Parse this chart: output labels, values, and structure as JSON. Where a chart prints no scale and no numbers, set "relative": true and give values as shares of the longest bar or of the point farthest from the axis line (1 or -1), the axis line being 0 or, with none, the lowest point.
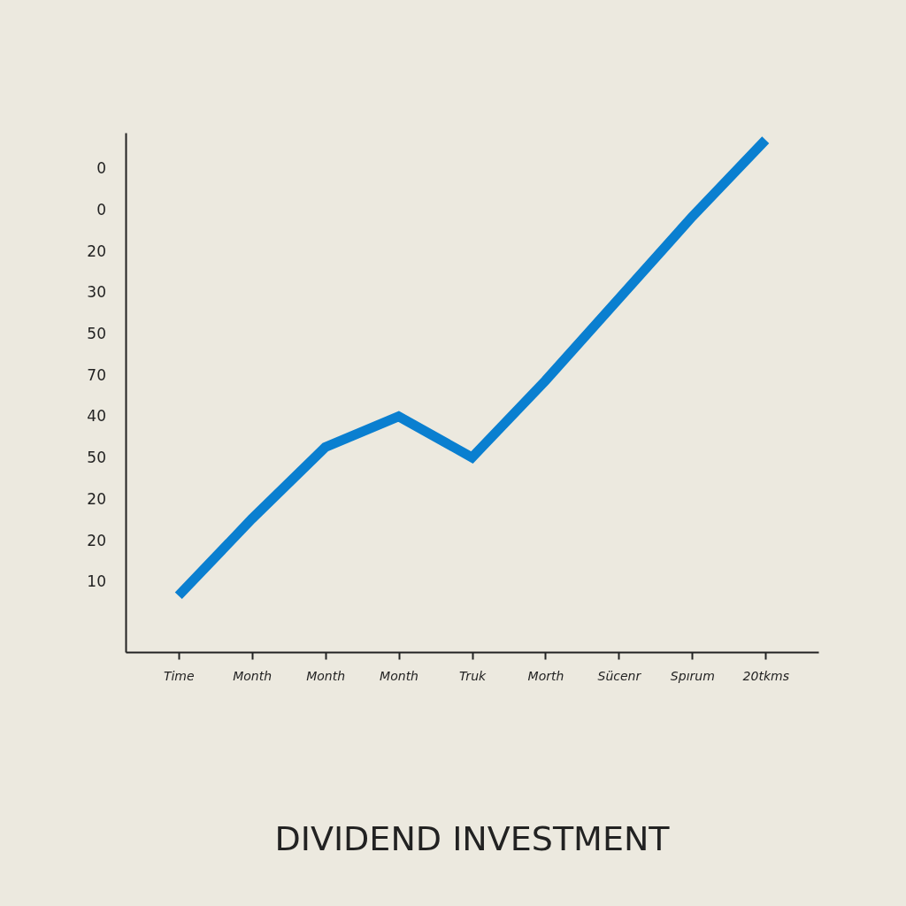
{
  "chart_data": {
    "type": "line",
    "title": "DIVIDEND INVESTMENT",
    "categories": [
      "Time",
      "Month",
      "Month",
      "Month",
      "Truk",
      "Morth",
      "Sücenr",
      "Spırum",
      "20tkms"
    ],
    "values": [
      0.11,
      0.26,
      0.4,
      0.46,
      0.38,
      0.53,
      0.69,
      0.85,
      1
    ],
    "color": "#0a7fd0",
    "relative": true,
    "annotations": [
      "10",
      "20",
      "20",
      "50",
      "40",
      "70",
      "50",
      "30",
      "20",
      "0",
      "0"
    ],
    "line_style": "solid"
  }
}
